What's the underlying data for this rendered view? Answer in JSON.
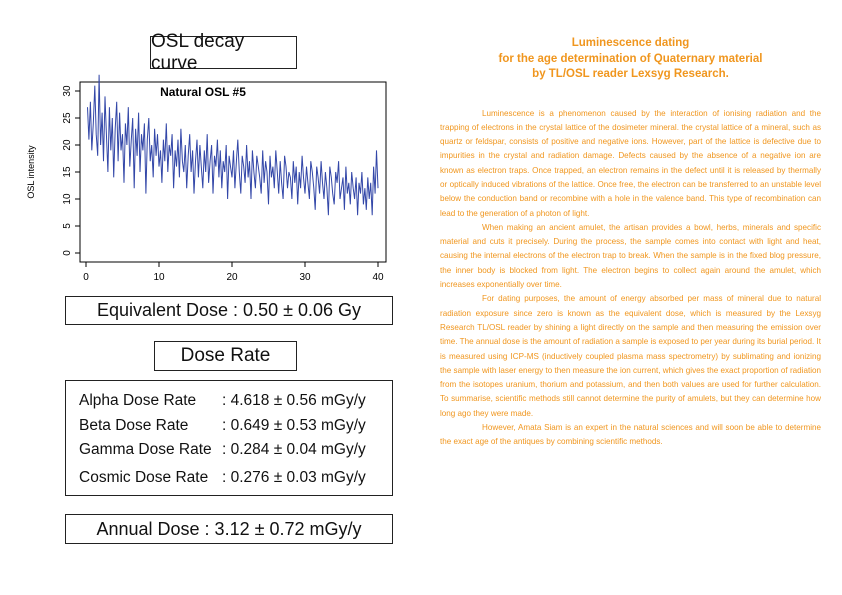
{
  "left": {
    "osl_title": "OSL decay curve",
    "equivalent_dose": "Equivalent Dose : 0.50 ± 0.06 Gy",
    "dose_rate_title": "Dose Rate",
    "rates": [
      {
        "name": "Alpha Dose Rate",
        "value": ": 4.618 ± 0.56 mGy/y"
      },
      {
        "name": "Beta Dose Rate",
        "value": ": 0.649 ± 0.53 mGy/y"
      },
      {
        "name": "Gamma Dose Rate",
        "value": ": 0.284 ± 0.04 mGy/y"
      },
      {
        "name": "Cosmic Dose Rate",
        "value": ": 0.276 ± 0.03 mGy/y"
      }
    ],
    "annual_dose": "Annual Dose : 3.12 ± 0.72 mGy/y"
  },
  "chart_data": {
    "type": "line",
    "title": "Natural OSL #5",
    "xlabel": "",
    "ylabel": "OSL intensity",
    "xlim": [
      0,
      40
    ],
    "ylim": [
      0,
      30
    ],
    "xticks": [
      "0",
      "10",
      "20",
      "30",
      "40"
    ],
    "yticks": [
      "0",
      "5",
      "10",
      "15",
      "20",
      "25",
      "30"
    ],
    "grid": false,
    "color": "#3347a8",
    "series": [
      {
        "x": [
          0.2,
          0.4,
          0.6,
          0.8,
          1.0,
          1.2,
          1.4,
          1.6,
          1.8,
          2.0,
          2.2,
          2.4,
          2.6,
          2.8,
          3.0,
          3.2,
          3.4,
          3.6,
          3.8,
          4.0,
          4.2,
          4.4,
          4.6,
          4.8,
          5.0,
          5.2,
          5.4,
          5.6,
          5.8,
          6.0,
          6.2,
          6.4,
          6.6,
          6.8,
          7.0,
          7.2,
          7.4,
          7.6,
          7.8,
          8.0,
          8.2,
          8.4,
          8.6,
          8.8,
          9.0,
          9.2,
          9.4,
          9.6,
          9.8,
          10.0,
          10.2,
          10.4,
          10.6,
          10.8,
          11.0,
          11.2,
          11.4,
          11.6,
          11.8,
          12.0,
          12.2,
          12.4,
          12.6,
          12.8,
          13.0,
          13.2,
          13.4,
          13.6,
          13.8,
          14.0,
          14.2,
          14.4,
          14.6,
          14.8,
          15.0,
          15.2,
          15.4,
          15.6,
          15.8,
          16.0,
          16.2,
          16.4,
          16.6,
          16.8,
          17.0,
          17.2,
          17.4,
          17.6,
          17.8,
          18.0,
          18.2,
          18.4,
          18.6,
          18.8,
          19.0,
          19.2,
          19.4,
          19.6,
          19.8,
          20.0,
          20.2,
          20.4,
          20.6,
          20.8,
          21.0,
          21.2,
          21.4,
          21.6,
          21.8,
          22.0,
          22.2,
          22.4,
          22.6,
          22.8,
          23.0,
          23.2,
          23.4,
          23.6,
          23.8,
          24.0,
          24.2,
          24.4,
          24.6,
          24.8,
          25.0,
          25.2,
          25.4,
          25.6,
          25.8,
          26.0,
          26.2,
          26.4,
          26.6,
          26.8,
          27.0,
          27.2,
          27.4,
          27.6,
          27.8,
          28.0,
          28.2,
          28.4,
          28.6,
          28.8,
          29.0,
          29.2,
          29.4,
          29.6,
          29.8,
          30.0,
          30.2,
          30.4,
          30.6,
          30.8,
          31.0,
          31.2,
          31.4,
          31.6,
          31.8,
          32.0,
          32.2,
          32.4,
          32.6,
          32.8,
          33.0,
          33.2,
          33.4,
          33.6,
          33.8,
          34.0,
          34.2,
          34.4,
          34.6,
          34.8,
          35.0,
          35.2,
          35.4,
          35.6,
          35.8,
          36.0,
          36.2,
          36.4,
          36.6,
          36.8,
          37.0,
          37.2,
          37.4,
          37.6,
          37.8,
          38.0,
          38.2,
          38.4,
          38.6,
          38.8,
          39.0,
          39.2,
          39.4,
          39.6,
          39.8,
          40.0
        ],
        "y": [
          27,
          21,
          28,
          19,
          24,
          31,
          22,
          18,
          33,
          20,
          26,
          17,
          29,
          22,
          15,
          27,
          19,
          25,
          14,
          23,
          28,
          17,
          26,
          19,
          22,
          13,
          24,
          20,
          27,
          16,
          21,
          25,
          12,
          23,
          18,
          26,
          15,
          22,
          19,
          24,
          11,
          21,
          25,
          17,
          20,
          14,
          23,
          18,
          22,
          16,
          19,
          13,
          21,
          17,
          24,
          15,
          20,
          18,
          22,
          12,
          19,
          16,
          21,
          14,
          23,
          17,
          15,
          20,
          12,
          18,
          22,
          15,
          19,
          11,
          17,
          21,
          14,
          20,
          16,
          12,
          19,
          15,
          22,
          13,
          17,
          20,
          11,
          18,
          16,
          21,
          14,
          19,
          12,
          17,
          15,
          20,
          10,
          18,
          16,
          14,
          19,
          12,
          17,
          21,
          15,
          11,
          18,
          16,
          13,
          20,
          14,
          17,
          10,
          19,
          15,
          12,
          18,
          16,
          14,
          11,
          19,
          13,
          17,
          15,
          9,
          18,
          14,
          16,
          12,
          19,
          15,
          11,
          17,
          13,
          10,
          18,
          16,
          12,
          15,
          14,
          10,
          17,
          13,
          16,
          9,
          15,
          12,
          18,
          14,
          11,
          16,
          13,
          10,
          17,
          15,
          12,
          8,
          16,
          14,
          11,
          17,
          13,
          10,
          15,
          12,
          7,
          16,
          14,
          11,
          9,
          15,
          13,
          17,
          10,
          12,
          14,
          8,
          16,
          11,
          13,
          9,
          15,
          12,
          10,
          14,
          7,
          13,
          11,
          15,
          9,
          12,
          8,
          14,
          10,
          13,
          7,
          16,
          11,
          19,
          12
        ]
      }
    ]
  },
  "right": {
    "heading": [
      "Luminescence dating",
      "for the age determination of Quaternary material",
      "by TL/OSL reader Lexsyg Research."
    ],
    "paragraphs": [
      "Luminescence is a phenomenon caused by the interaction of ionising radiation and the trapping of electrons in the crystal lattice of the dosimeter mineral. the crystal lattice of a mineral, such as quartz or feldspar, consists of positive and negative ions. However, part of the lattice is defective due to impurities in the crystal and radiation damage. Defects caused by the absence of a negative ion are known as electron traps. Once trapped, an electron remains in the defect until it is released by thermally or optically induced vibrations of the lattice. Once free, the electron can be transferred to an unstable level below the conduction band or recombine with a hole in the valence band. This type of recombination can lead to the generation of a photon of light.",
      "When making an ancient amulet, the artisan provides a bowl, herbs, minerals and specific material and cuts it precisely. During the process, the sample comes into contact with light and heat, causing the internal electrons of the electron trap to break. When the sample is in the fixed blog pressure, the inner body is blocked from light. The electron begins to collect again around the amulet, which increases exponentially over time.",
      "For dating purposes, the amount of energy absorbed per mass of mineral due to natural radiation exposure since zero is known as the equivalent dose, which is measured by the Lexsyg Research TL/OSL reader by shining a light directly on the sample and then measuring the emission over time. The annual dose is the amount of radiation a sample is exposed to per year during its burial period. It is measured using ICP-MS (inductively coupled plasma mass spectrometry) by sublimating and ionizing the sample with laser energy to then measure the ion current, which gives the exact proportion of radiation from the isotopes uranium, thorium and potassium, and then both values are used for further calculation. To summarise, scientific methods still cannot determine the purity of amulets, but they can determine how long ago they were made.",
      "However, Amata Siam is an expert in the natural sciences and will soon be able to determine the exact age of the antiques by combining scientific methods."
    ]
  }
}
